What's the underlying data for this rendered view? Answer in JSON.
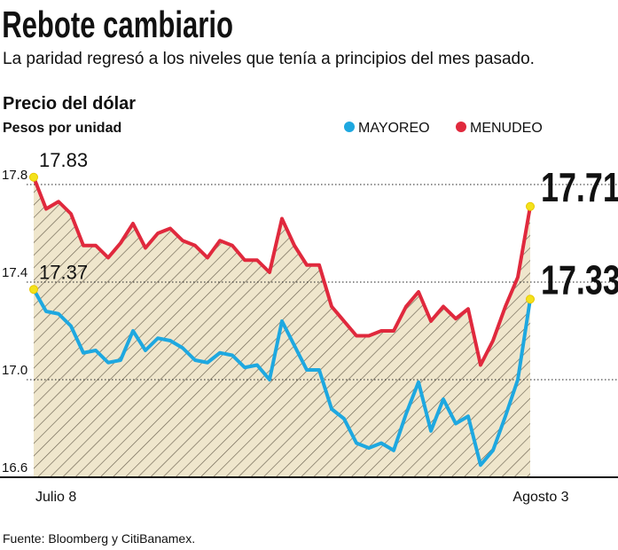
{
  "chart_data": {
    "type": "line",
    "title": "Rebote cambiario",
    "subtitle": "La paridad regresó a los niveles que tenía a principios del mes pasado.",
    "y_title": "Precio del dólar",
    "y_subtitle": "Pesos por unidad",
    "source": "Fuente: Bloomberg y CitiBanamex.",
    "categories": [
      "Julio 8",
      null,
      null,
      null,
      null,
      null,
      null,
      null,
      null,
      null,
      null,
      null,
      null,
      null,
      null,
      null,
      null,
      null,
      null,
      null,
      null,
      null,
      null,
      null,
      null,
      null,
      null,
      null,
      null,
      null,
      null,
      null,
      null,
      null,
      null,
      null,
      null,
      null,
      null,
      null,
      "Agosto 3"
    ],
    "series": [
      {
        "name": "MAYOREO",
        "color": "#1ea8e0",
        "values": [
          17.37,
          17.28,
          17.27,
          17.22,
          17.11,
          17.12,
          17.07,
          17.08,
          17.2,
          17.12,
          17.17,
          17.16,
          17.13,
          17.08,
          17.07,
          17.11,
          17.1,
          17.05,
          17.06,
          17.0,
          17.24,
          17.14,
          17.04,
          17.04,
          16.88,
          16.84,
          16.74,
          16.72,
          16.74,
          16.71,
          16.86,
          16.99,
          16.79,
          16.92,
          16.82,
          16.85,
          16.65,
          16.71,
          16.85,
          17.0,
          17.33
        ]
      },
      {
        "name": "MENUDEO",
        "color": "#e0293d",
        "values": [
          17.83,
          17.7,
          17.73,
          17.68,
          17.55,
          17.55,
          17.5,
          17.56,
          17.64,
          17.54,
          17.6,
          17.62,
          17.57,
          17.55,
          17.5,
          17.57,
          17.55,
          17.49,
          17.49,
          17.44,
          17.66,
          17.55,
          17.47,
          17.47,
          17.3,
          17.24,
          17.18,
          17.18,
          17.2,
          17.2,
          17.3,
          17.36,
          17.24,
          17.3,
          17.25,
          17.29,
          17.06,
          17.16,
          17.3,
          17.42,
          17.71
        ]
      }
    ],
    "ylim": [
      16.6,
      17.9
    ],
    "yticks": [
      16.6,
      {
        "value": 17,
        "label": "17.0"
      },
      17.4,
      17.8
    ],
    "grid": true
  }
}
